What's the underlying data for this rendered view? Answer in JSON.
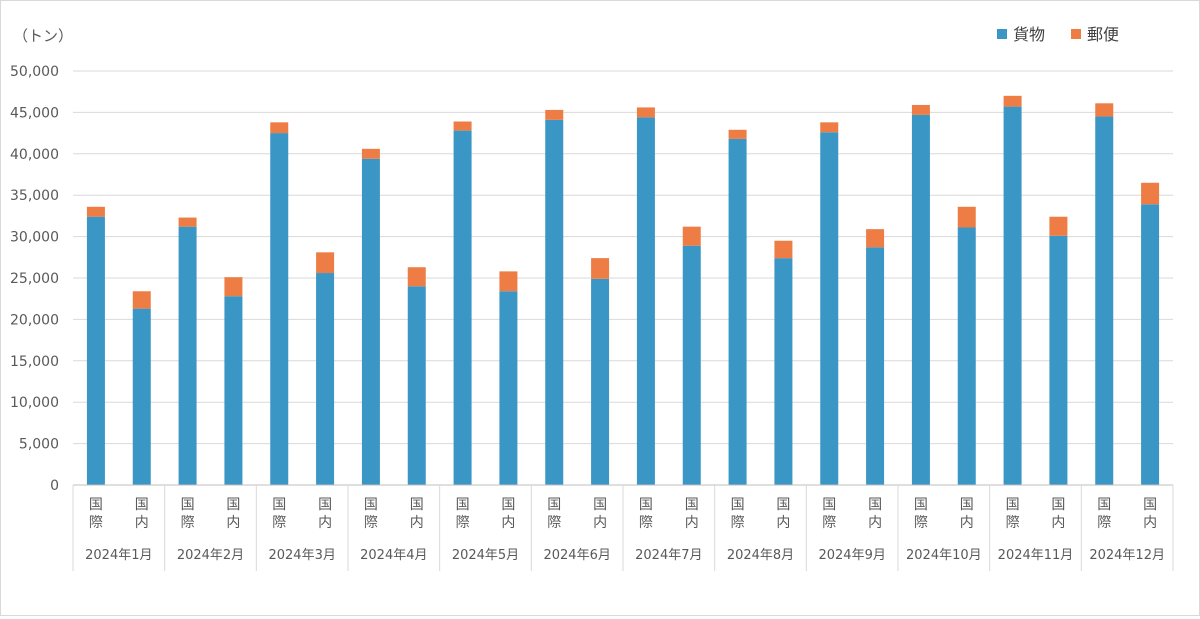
{
  "chart_data": {
    "type": "bar",
    "stacked": true,
    "unit_label": "（トン）",
    "ylim": [
      0,
      50000
    ],
    "yticks": [
      "0",
      "5,000",
      "10,000",
      "15,000",
      "20,000",
      "25,000",
      "30,000",
      "35,000",
      "40,000",
      "45,000",
      "50,000"
    ],
    "ytick_values": [
      0,
      5000,
      10000,
      15000,
      20000,
      25000,
      30000,
      35000,
      40000,
      45000,
      50000
    ],
    "grid": true,
    "legend_position": "top-right",
    "categories": [
      {
        "group": "2024年1月",
        "sub": "国際"
      },
      {
        "group": "2024年1月",
        "sub": "国内"
      },
      {
        "group": "2024年2月",
        "sub": "国際"
      },
      {
        "group": "2024年2月",
        "sub": "国内"
      },
      {
        "group": "2024年3月",
        "sub": "国際"
      },
      {
        "group": "2024年3月",
        "sub": "国内"
      },
      {
        "group": "2024年4月",
        "sub": "国際"
      },
      {
        "group": "2024年4月",
        "sub": "国内"
      },
      {
        "group": "2024年5月",
        "sub": "国際"
      },
      {
        "group": "2024年5月",
        "sub": "国内"
      },
      {
        "group": "2024年6月",
        "sub": "国際"
      },
      {
        "group": "2024年6月",
        "sub": "国内"
      },
      {
        "group": "2024年7月",
        "sub": "国際"
      },
      {
        "group": "2024年7月",
        "sub": "国内"
      },
      {
        "group": "2024年8月",
        "sub": "国際"
      },
      {
        "group": "2024年8月",
        "sub": "国内"
      },
      {
        "group": "2024年9月",
        "sub": "国際"
      },
      {
        "group": "2024年9月",
        "sub": "国内"
      },
      {
        "group": "2024年10月",
        "sub": "国際"
      },
      {
        "group": "2024年10月",
        "sub": "国内"
      },
      {
        "group": "2024年11月",
        "sub": "国際"
      },
      {
        "group": "2024年11月",
        "sub": "国内"
      },
      {
        "group": "2024年12月",
        "sub": "国際"
      },
      {
        "group": "2024年12月",
        "sub": "国内"
      }
    ],
    "groups": [
      "2024年1月",
      "2024年2月",
      "2024年3月",
      "2024年4月",
      "2024年5月",
      "2024年6月",
      "2024年7月",
      "2024年8月",
      "2024年9月",
      "2024年10月",
      "2024年11月",
      "2024年12月"
    ],
    "series": [
      {
        "name": "貨物",
        "color": "#3a96c4",
        "values": [
          32400,
          21300,
          31200,
          22800,
          42500,
          25600,
          39400,
          24000,
          42800,
          23400,
          44100,
          24900,
          44400,
          28900,
          41800,
          27400,
          42600,
          28700,
          44700,
          31100,
          45700,
          30100,
          44500,
          33900
        ]
      },
      {
        "name": "郵便",
        "color": "#ed7d45",
        "values": [
          1200,
          2100,
          1100,
          2300,
          1300,
          2500,
          1200,
          2300,
          1100,
          2400,
          1200,
          2500,
          1200,
          2300,
          1100,
          2100,
          1200,
          2200,
          1200,
          2500,
          1300,
          2300,
          1600,
          2600
        ]
      }
    ]
  }
}
